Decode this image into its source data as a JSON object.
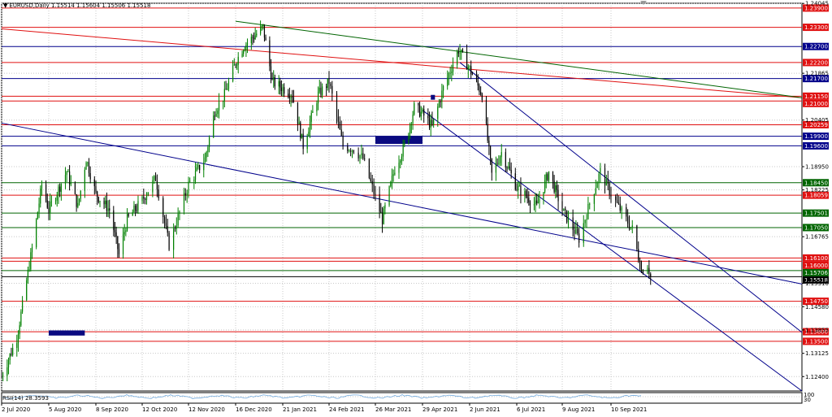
{
  "header": {
    "menu_glyph": "▼",
    "symbol": "EURUSD,Daily",
    "ohlc": [
      "1.15514",
      "1.15604",
      "1.15506",
      "1.15518"
    ]
  },
  "rsi": {
    "label": "RSI(14) 28.3593",
    "level_labels": [
      "100",
      "30"
    ],
    "color": "#6fa8dc"
  },
  "chart_data": {
    "type": "candlestick",
    "symbol": "EURUSD",
    "timeframe": "Daily",
    "ylim": [
      1.1195,
      1.2405
    ],
    "y_tick_labels": [
      "1.24045",
      "1.21865",
      "1.20405",
      "1.18950",
      "1.18225",
      "1.16765",
      "1.15310",
      "1.14580",
      "1.13855",
      "1.13125",
      "1.12400"
    ],
    "x_labels": [
      "2 Jul 2020",
      "5 Aug 2020",
      "8 Sep 2020",
      "12 Oct 2020",
      "12 Nov 2020",
      "16 Dec 2020",
      "21 Jan 2021",
      "24 Feb 2021",
      "26 Mar 2021",
      "29 Apr 2021",
      "2 Jun 2021",
      "6 Jul 2021",
      "9 Aug 2021",
      "10 Sep 2021"
    ],
    "price_path": [
      [
        "2 Jul 2020",
        1.124
      ],
      [
        "13 Jul 2020",
        1.136
      ],
      [
        "24 Jul 2020",
        1.164
      ],
      [
        "31 Jul 2020",
        1.184
      ],
      [
        "5 Aug 2020",
        1.176
      ],
      [
        "18 Aug 2020",
        1.188
      ],
      [
        "26 Aug 2020",
        1.177
      ],
      [
        "1 Sep 2020",
        1.192
      ],
      [
        "8 Sep 2020",
        1.181
      ],
      [
        "18 Sep 2020",
        1.176
      ],
      [
        "25 Sep 2020",
        1.162
      ],
      [
        "1 Oct 2020",
        1.173
      ],
      [
        "12 Oct 2020",
        1.179
      ],
      [
        "21 Oct 2020",
        1.186
      ],
      [
        "30 Oct 2020",
        1.165
      ],
      [
        "12 Nov 2020",
        1.184
      ],
      [
        "24 Nov 2020",
        1.192
      ],
      [
        "1 Dec 2020",
        1.207
      ],
      [
        "8 Dec 2020",
        1.212
      ],
      [
        "16 Dec 2020",
        1.222
      ],
      [
        "22 Dec 2020",
        1.227
      ],
      [
        "6 Jan 2021",
        1.233
      ],
      [
        "13 Jan 2021",
        1.216
      ],
      [
        "21 Jan 2021",
        1.214
      ],
      [
        "28 Jan 2021",
        1.212
      ],
      [
        "5 Feb 2021",
        1.196
      ],
      [
        "16 Feb 2021",
        1.212
      ],
      [
        "24 Feb 2021",
        1.216
      ],
      [
        "5 Mar 2021",
        1.196
      ],
      [
        "12 Mar 2021",
        1.195
      ],
      [
        "18 Mar 2021",
        1.192
      ],
      [
        "26 Mar 2021",
        1.18
      ],
      [
        "31 Mar 2021",
        1.173
      ],
      [
        "9 Apr 2021",
        1.189
      ],
      [
        "16 Apr 2021",
        1.196
      ],
      [
        "23 Apr 2021",
        1.208
      ],
      [
        "29 Apr 2021",
        1.206
      ],
      [
        "6 May 2021",
        1.202
      ],
      [
        "14 May 2021",
        1.214
      ],
      [
        "25 May 2021",
        1.226
      ],
      [
        "2 Jun 2021",
        1.22
      ],
      [
        "11 Jun 2021",
        1.212
      ],
      [
        "18 Jun 2021",
        1.187
      ],
      [
        "25 Jun 2021",
        1.194
      ],
      [
        "6 Jul 2021",
        1.183
      ],
      [
        "14 Jul 2021",
        1.18
      ],
      [
        "21 Jul 2021",
        1.177
      ],
      [
        "30 Jul 2021",
        1.188
      ],
      [
        "9 Aug 2021",
        1.176
      ],
      [
        "20 Aug 2021",
        1.167
      ],
      [
        "27 Aug 2021",
        1.178
      ],
      [
        "3 Sep 2021",
        1.188
      ],
      [
        "10 Sep 2021",
        1.181
      ],
      [
        "20 Sep 2021",
        1.173
      ],
      [
        "24 Sep 2021",
        1.17
      ],
      [
        "30 Sep 2021",
        1.157
      ],
      [
        "4 Oct 2021",
        1.159
      ],
      [
        "6 Oct 2021",
        1.1552
      ]
    ],
    "horizontal_levels": [
      {
        "label": "1.23900",
        "color": "#e01010",
        "fill": "#e01010"
      },
      {
        "label": "1.23300",
        "color": "#e01010",
        "fill": "#e01010"
      },
      {
        "label": "1.22700",
        "color": "#00008b",
        "fill": "#00008b"
      },
      {
        "label": "1.22200",
        "color": "#e01010",
        "fill": "#e01010"
      },
      {
        "label": "1.21700",
        "color": "#00008b",
        "fill": "#00008b"
      },
      {
        "label": "1.21150",
        "color": "#e01010",
        "fill": "#e01010"
      },
      {
        "label": "1.21000",
        "color": "#e01010",
        "fill": "#e01010"
      },
      {
        "label": "1.20259",
        "color": "#e01010",
        "fill": "#e01010"
      },
      {
        "label": "1.19900",
        "color": "#00008b",
        "fill": "#00008b"
      },
      {
        "label": "1.19600",
        "color": "#00008b",
        "fill": "#00008b"
      },
      {
        "label": "1.18450",
        "color": "#006400",
        "fill": "#006400"
      },
      {
        "label": "1.18059",
        "color": "#e01010",
        "fill": "#e01010"
      },
      {
        "label": "1.17501",
        "color": "#006400",
        "fill": "#006400"
      },
      {
        "label": "1.17050",
        "color": "#006400",
        "fill": "#006400"
      },
      {
        "label": "1.16100",
        "color": "#e01010",
        "fill": "#e01010"
      },
      {
        "label": "1.16000",
        "color": "#e01010",
        "fill": "#e01010"
      },
      {
        "label": "1.15706",
        "color": "#006400",
        "fill": "#006400"
      },
      {
        "label": "1.15518",
        "color": "#000000",
        "fill": "#000000"
      },
      {
        "label": "1.14750",
        "color": "#e01010",
        "fill": "#e01010"
      },
      {
        "label": "1.13800",
        "color": "#e01010",
        "fill": "#e01010"
      },
      {
        "label": "1.13500",
        "color": "#e01010",
        "fill": "#e01010"
      }
    ],
    "trendlines": [
      {
        "color": "#e01010",
        "from": [
          "2 Jul 2020",
          1.2325
        ],
        "to": [
          "right edge",
          1.211
        ]
      },
      {
        "color": "#006400",
        "from": [
          "16 Dec 2020",
          1.2349
        ],
        "to": [
          "right edge",
          1.211
        ]
      },
      {
        "color": "#00008b",
        "from": [
          "2 Jul 2020",
          1.2031
        ],
        "to": [
          "right edge",
          1.1529
        ]
      },
      {
        "color": "#00008b",
        "from": [
          "26 May 2021",
          1.222
        ],
        "to": [
          "right edge",
          1.1378
        ]
      },
      {
        "color": "#00008b",
        "from": [
          "29 Apr 2021",
          1.2071
        ],
        "to": [
          "right edge",
          1.1195
        ]
      }
    ],
    "zones": [
      {
        "color": "#0a0a80",
        "from": [
          "26 Mar 2021",
          1.1991
        ],
        "to": [
          "29 Apr 2021",
          1.1966
        ]
      },
      {
        "color": "#0a0a80",
        "from": [
          "5 May 2021",
          1.2119
        ],
        "to": [
          "8 May 2021",
          1.2104
        ]
      },
      {
        "color": "#0a0a80",
        "from": [
          "5 Aug 2020",
          1.1384
        ],
        "to": [
          "31 Aug 2020",
          1.1368
        ]
      }
    ],
    "grid": true,
    "grid_color": "#c8c8c8",
    "up_color": "#008000",
    "down_color": "#000000",
    "grid_style": "dotted"
  }
}
